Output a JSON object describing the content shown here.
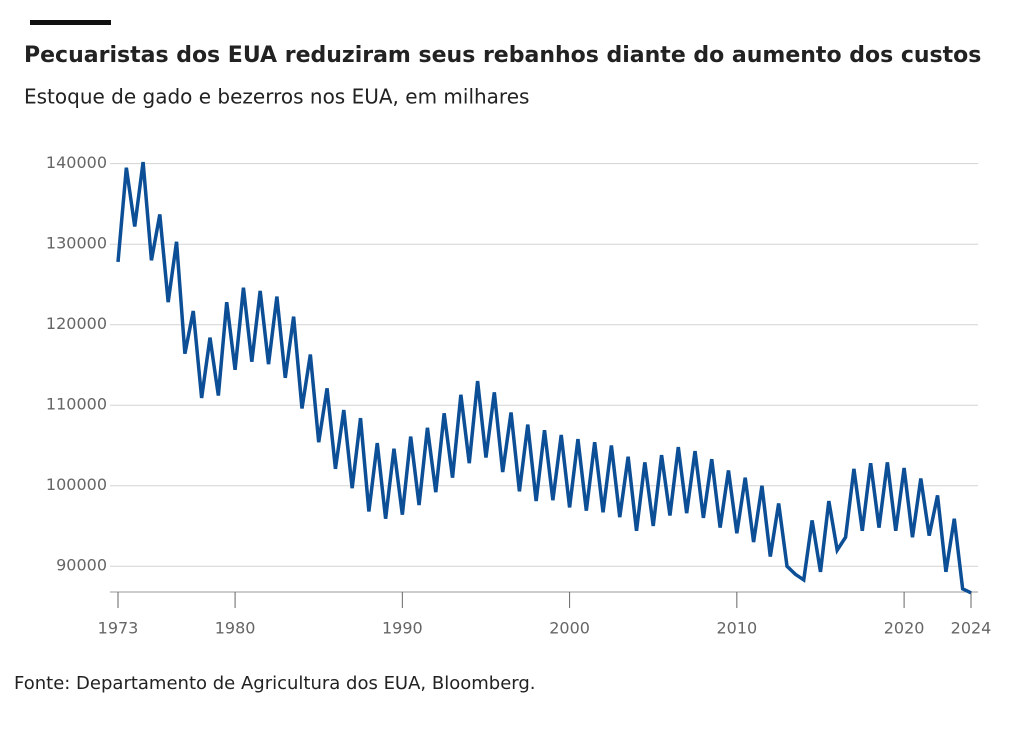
{
  "chart_data": {
    "type": "line",
    "title": "Pecuaristas dos EUA reduziram seus rebanhos diante do aumento dos custos",
    "subtitle": "Estoque de gado e bezerros nos EUA, em milhares",
    "source": "Fonte: Departamento de Agricultura dos EUA, Bloomberg.",
    "x": [
      1973,
      1973.5,
      1974,
      1974.5,
      1975,
      1975.5,
      1976,
      1976.5,
      1977,
      1977.5,
      1978,
      1978.5,
      1979,
      1979.5,
      1980,
      1980.5,
      1981,
      1981.5,
      1982,
      1982.5,
      1983,
      1983.5,
      1984,
      1984.5,
      1985,
      1985.5,
      1986,
      1986.5,
      1987,
      1987.5,
      1988,
      1988.5,
      1989,
      1989.5,
      1990,
      1990.5,
      1991,
      1991.5,
      1992,
      1992.5,
      1993,
      1993.5,
      1994,
      1994.5,
      1995,
      1995.5,
      1996,
      1996.5,
      1997,
      1997.5,
      1998,
      1998.5,
      1999,
      1999.5,
      2000,
      2000.5,
      2001,
      2001.5,
      2002,
      2002.5,
      2003,
      2003.5,
      2004,
      2004.5,
      2005,
      2005.5,
      2006,
      2006.5,
      2007,
      2007.5,
      2008,
      2008.5,
      2009,
      2009.5,
      2010,
      2010.5,
      2011,
      2011.5,
      2012,
      2012.5,
      2013,
      2013.5,
      2014,
      2014.5,
      2015,
      2015.5,
      2016,
      2016.5,
      2017,
      2017.5,
      2018,
      2018.5,
      2019,
      2019.5,
      2020,
      2020.5,
      2021,
      2021.5,
      2022,
      2022.5,
      2023,
      2023.5,
      2024
    ],
    "series": [
      {
        "name": "Estoque de gado e bezerros",
        "color": "#0d4f96",
        "values": [
          127800,
          139500,
          132200,
          140200,
          128000,
          133700,
          122800,
          130300,
          116400,
          121700,
          110900,
          118400,
          111200,
          122800,
          114400,
          124600,
          115400,
          124200,
          115100,
          123500,
          113400,
          121000,
          109600,
          116300,
          105400,
          112100,
          102100,
          109400,
          99700,
          108400,
          96800,
          105300,
          95900,
          104600,
          96400,
          106100,
          97600,
          107200,
          99200,
          109000,
          101000,
          111300,
          102800,
          113000,
          103500,
          111600,
          101700,
          109100,
          99300,
          107600,
          98100,
          106900,
          98200,
          106300,
          97300,
          105800,
          96900,
          105400,
          96700,
          105000,
          96100,
          103600,
          94400,
          102900,
          95000,
          103800,
          96300,
          104800,
          96600,
          104300,
          96000,
          103300,
          94800,
          101900,
          94100,
          101000,
          93000,
          100000,
          91200,
          97800,
          90000,
          89000,
          88300,
          95700,
          89300,
          98100,
          92000,
          93600,
          102100,
          94400,
          102800,
          94800,
          102900,
          94400,
          102200,
          93600,
          100900,
          93800,
          98800,
          89300,
          95900,
          87200,
          86700
        ]
      }
    ],
    "xlim": [
      1973,
      2024
    ],
    "xticks": [
      1973,
      1980,
      1990,
      2000,
      2010,
      2020,
      2024
    ],
    "ylim": [
      86800,
      141700
    ],
    "yticks": [
      90000,
      100000,
      110000,
      120000,
      130000,
      140000
    ],
    "grid": true
  }
}
